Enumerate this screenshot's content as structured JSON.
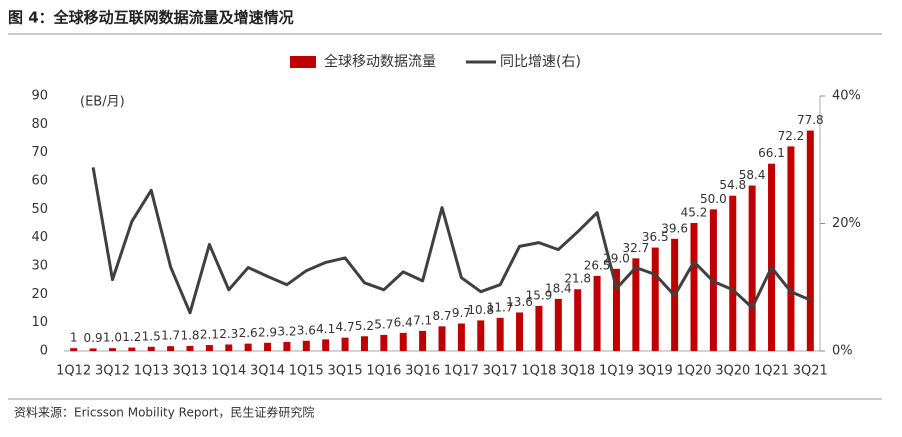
{
  "title": "图 4：全球移动互联网数据流量及增速情况",
  "source": "资料来源：Ericsson Mobility Report，民生证券研究院",
  "chart_data": {
    "type": "bar-line",
    "ylabel": "(EB/月)",
    "categories": [
      "1Q12",
      null,
      "3Q12",
      null,
      "1Q13",
      null,
      "3Q13",
      null,
      "1Q14",
      null,
      "3Q14",
      null,
      "1Q15",
      null,
      "3Q15",
      null,
      "1Q16",
      null,
      "3Q16",
      null,
      "1Q17",
      null,
      "3Q17",
      null,
      "1Q18",
      null,
      "3Q18",
      null,
      "1Q19",
      null,
      "3Q19",
      null,
      "1Q20",
      null,
      "3Q20",
      null,
      "1Q21",
      null,
      "3Q21"
    ],
    "series": [
      {
        "name": "全球移动数据流量",
        "type": "bar",
        "color": "#c00000",
        "values": [
          1,
          0.9,
          1.0,
          1.2,
          1.5,
          1.7,
          1.8,
          2.1,
          2.3,
          2.6,
          2.9,
          3.2,
          3.6,
          4.1,
          4.7,
          5.2,
          5.7,
          6.4,
          7.1,
          8.7,
          9.7,
          10.8,
          11.7,
          13.6,
          15.9,
          18.4,
          21.8,
          26.5,
          29.0,
          32.7,
          36.5,
          39.6,
          45.2,
          50.0,
          54.8,
          58.4,
          66.1,
          72.2,
          77.8
        ],
        "value_labels": [
          "1",
          "0.9",
          "1.0",
          "1.2",
          "1.5",
          "1.7",
          "1.8",
          "2.1",
          "2.3",
          "2.6",
          "2.9",
          "3.2",
          "3.6",
          "4.1",
          "4.7",
          "5.2",
          "5.7",
          "6.4",
          "7.1",
          "8.7",
          "9.7",
          "10.8",
          "11.7",
          "13.6",
          "15.9",
          "18.4",
          "21.8",
          "26.5",
          "29.0",
          "32.7",
          "36.5",
          "39.6",
          "45.2",
          "50.0",
          "54.8",
          "58.4",
          "66.1",
          "72.2",
          "77.8"
        ]
      },
      {
        "name": "同比增速(右)",
        "type": "line",
        "axis": "y2",
        "color": "#404040",
        "values": [
          null,
          28.8,
          11.2,
          20.3,
          25.2,
          13.2,
          6.0,
          16.7,
          9.6,
          13.1,
          11.7,
          10.4,
          12.6,
          13.9,
          14.6,
          10.7,
          9.6,
          12.4,
          11.0,
          22.5,
          11.5,
          9.3,
          10.4,
          16.4,
          17.0,
          15.9,
          18.7,
          21.7,
          9.8,
          13.1,
          12.0,
          8.7,
          14.0,
          10.9,
          9.6,
          6.8,
          13.1,
          9.3,
          8.0
        ]
      }
    ],
    "ylim": [
      0,
      90
    ],
    "yticks": [
      0,
      10,
      20,
      30,
      40,
      50,
      60,
      70,
      80,
      90
    ],
    "y2lim": [
      0,
      40
    ],
    "y2ticks": [
      {
        "value": 0,
        "label": "0%"
      },
      {
        "value": 20,
        "label": "20%"
      },
      {
        "value": 40,
        "label": "40%"
      }
    ]
  }
}
